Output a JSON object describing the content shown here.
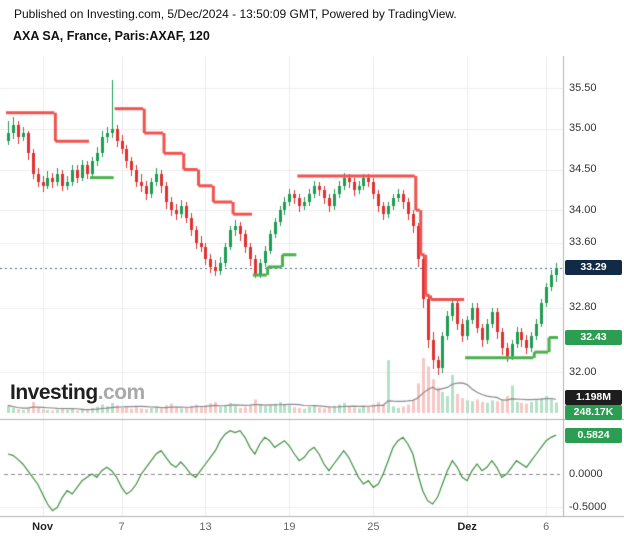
{
  "header": {
    "published_line": "Published on Investing.com, 5/Dec/2024 - 13:50:09 GMT, Powered by TradingView."
  },
  "title": "AXA SA, France, Paris:AXAF, 120",
  "logo": {
    "main": "Investing",
    "suffix": ".com"
  },
  "colors": {
    "candle_up": "#1e9c51",
    "candle_down": "#e03131",
    "trail_up": "#4caf50",
    "trail_down": "#ef5350",
    "vol_up": "#b5e0c9",
    "vol_down": "#f6c7c5",
    "vol_ma": "#8a8a8a",
    "osc_line": "#3f9142",
    "grid": "#ececec",
    "separator": "#b0b0b0",
    "last_line": "#4a6a92",
    "axis_text": "#333333",
    "time_text": "#666666"
  },
  "badges": {
    "last_price": {
      "text": "33.29",
      "bg": "#112b47"
    },
    "stop": {
      "text": "32.43",
      "bg": "#2b9e53"
    },
    "volume_a": {
      "text": "1.198M",
      "bg": "#1d1d1d"
    },
    "volume_b": {
      "text": "248.17K",
      "bg": "#2b9e53"
    },
    "oscillator": {
      "text": "0.5824",
      "bg": "#2b9e53"
    }
  },
  "chart_data": {
    "type": "candlestick",
    "title": "AXA SA, France, Paris:AXAF, 120",
    "symbol": "Paris:AXAF",
    "interval_minutes": 120,
    "last_price": 33.29,
    "stop_value": 32.43,
    "price_axis": {
      "labels": [
        35.5,
        35.0,
        34.5,
        34.0,
        33.6,
        32.8,
        32.0
      ],
      "ylim": [
        31.5,
        35.85
      ]
    },
    "time_axis": [
      {
        "text": "Nov",
        "index": 7,
        "emphasis": true
      },
      {
        "text": "7",
        "index": 23
      },
      {
        "text": "13",
        "index": 40
      },
      {
        "text": "19",
        "index": 57
      },
      {
        "text": "25",
        "index": 74
      },
      {
        "text": "Dez",
        "index": 93,
        "emphasis": true
      },
      {
        "text": "6",
        "index": 109
      }
    ],
    "oscillator": {
      "last": 0.5824,
      "axis_labels": [
        "0.0000",
        "-0.5000"
      ],
      "range": [
        -0.6,
        0.75
      ]
    },
    "volume_unit": "K",
    "volume_scale_k": 1300,
    "volume_labels": {
      "black": "1.198M",
      "green": "248.17K"
    },
    "candles": [
      [
        34.85,
        35.1,
        34.8,
        34.95
      ],
      [
        34.95,
        35.15,
        34.88,
        35.05
      ],
      [
        35.05,
        35.1,
        34.82,
        34.9
      ],
      [
        34.9,
        35.02,
        34.85,
        34.95
      ],
      [
        34.95,
        34.98,
        34.62,
        34.7
      ],
      [
        34.7,
        34.75,
        34.38,
        34.45
      ],
      [
        34.45,
        34.52,
        34.28,
        34.35
      ],
      [
        34.35,
        34.42,
        34.22,
        34.3
      ],
      [
        34.3,
        34.48,
        34.26,
        34.4
      ],
      [
        34.4,
        34.46,
        34.28,
        34.35
      ],
      [
        34.35,
        34.52,
        34.3,
        34.45
      ],
      [
        34.45,
        34.5,
        34.24,
        34.3
      ],
      [
        34.3,
        34.42,
        34.25,
        34.35
      ],
      [
        34.35,
        34.56,
        34.3,
        34.5
      ],
      [
        34.5,
        34.55,
        34.33,
        34.4
      ],
      [
        34.4,
        34.62,
        34.36,
        34.55
      ],
      [
        34.55,
        34.6,
        34.38,
        34.45
      ],
      [
        34.45,
        34.66,
        34.4,
        34.6
      ],
      [
        34.6,
        34.78,
        34.55,
        34.7
      ],
      [
        34.7,
        34.97,
        34.65,
        34.9
      ],
      [
        34.9,
        35.02,
        34.82,
        34.95
      ],
      [
        34.95,
        35.6,
        34.88,
        35.0
      ],
      [
        35.0,
        35.05,
        34.78,
        34.85
      ],
      [
        34.85,
        34.92,
        34.68,
        34.75
      ],
      [
        34.75,
        34.8,
        34.52,
        34.6
      ],
      [
        34.6,
        34.65,
        34.42,
        34.5
      ],
      [
        34.5,
        34.55,
        34.28,
        34.35
      ],
      [
        34.35,
        34.44,
        34.22,
        34.3
      ],
      [
        34.3,
        34.36,
        34.12,
        34.2
      ],
      [
        34.2,
        34.4,
        34.15,
        34.35
      ],
      [
        34.35,
        34.52,
        34.3,
        34.45
      ],
      [
        34.45,
        34.5,
        34.22,
        34.3
      ],
      [
        34.3,
        34.35,
        34.02,
        34.1
      ],
      [
        34.1,
        34.16,
        33.92,
        34.0
      ],
      [
        34.0,
        34.08,
        33.88,
        33.95
      ],
      [
        33.95,
        34.12,
        33.9,
        34.05
      ],
      [
        34.05,
        34.1,
        33.84,
        33.9
      ],
      [
        33.9,
        33.96,
        33.68,
        33.75
      ],
      [
        33.75,
        33.8,
        33.52,
        33.6
      ],
      [
        33.6,
        33.68,
        33.48,
        33.55
      ],
      [
        33.55,
        33.6,
        33.33,
        33.4
      ],
      [
        33.4,
        33.46,
        33.22,
        33.3
      ],
      [
        33.3,
        33.38,
        33.18,
        33.25
      ],
      [
        33.25,
        33.42,
        33.2,
        33.35
      ],
      [
        33.35,
        33.6,
        33.3,
        33.55
      ],
      [
        33.55,
        33.8,
        33.5,
        33.75
      ],
      [
        33.75,
        33.88,
        33.68,
        33.8
      ],
      [
        33.8,
        33.85,
        33.62,
        33.7
      ],
      [
        33.7,
        33.76,
        33.48,
        33.55
      ],
      [
        33.55,
        33.6,
        33.32,
        33.4
      ],
      [
        33.4,
        33.45,
        33.17,
        33.2
      ],
      [
        33.2,
        33.4,
        33.17,
        33.35
      ],
      [
        33.35,
        33.56,
        33.3,
        33.5
      ],
      [
        33.5,
        33.75,
        33.45,
        33.7
      ],
      [
        33.7,
        33.9,
        33.65,
        33.85
      ],
      [
        33.85,
        34.05,
        33.8,
        34.0
      ],
      [
        34.0,
        34.16,
        33.94,
        34.1
      ],
      [
        34.1,
        34.26,
        34.05,
        34.2
      ],
      [
        34.2,
        34.25,
        34.08,
        34.15
      ],
      [
        34.15,
        34.2,
        33.98,
        34.05
      ],
      [
        34.05,
        34.16,
        34.0,
        34.1
      ],
      [
        34.1,
        34.26,
        34.05,
        34.2
      ],
      [
        34.2,
        34.36,
        34.15,
        34.3
      ],
      [
        34.3,
        34.35,
        34.18,
        34.25
      ],
      [
        34.25,
        34.3,
        34.08,
        34.15
      ],
      [
        34.15,
        34.2,
        33.98,
        34.05
      ],
      [
        34.05,
        34.26,
        34.0,
        34.2
      ],
      [
        34.2,
        34.36,
        34.15,
        34.3
      ],
      [
        34.3,
        34.46,
        34.25,
        34.4
      ],
      [
        34.4,
        34.45,
        34.28,
        34.35
      ],
      [
        34.35,
        34.4,
        34.18,
        34.25
      ],
      [
        34.25,
        34.36,
        34.2,
        34.3
      ],
      [
        34.3,
        34.45,
        34.25,
        34.4
      ],
      [
        34.4,
        34.44,
        34.28,
        34.35
      ],
      [
        34.35,
        34.4,
        34.14,
        34.2
      ],
      [
        34.2,
        34.25,
        33.98,
        34.05
      ],
      [
        34.05,
        34.1,
        33.88,
        33.95
      ],
      [
        33.95,
        34.1,
        33.9,
        34.05
      ],
      [
        34.05,
        34.2,
        34.0,
        34.15
      ],
      [
        34.15,
        34.26,
        34.1,
        34.2
      ],
      [
        34.2,
        34.25,
        34.02,
        34.1
      ],
      [
        34.1,
        34.15,
        33.88,
        33.95
      ],
      [
        33.95,
        34.0,
        33.72,
        33.8
      ],
      [
        33.8,
        33.84,
        33.3,
        33.4
      ],
      [
        33.4,
        33.45,
        32.8,
        32.9
      ],
      [
        32.9,
        32.95,
        32.3,
        32.4
      ],
      [
        32.4,
        32.5,
        32.05,
        32.15
      ],
      [
        32.15,
        32.2,
        31.97,
        32.05
      ],
      [
        32.05,
        32.5,
        32.0,
        32.45
      ],
      [
        32.45,
        32.76,
        32.4,
        32.7
      ],
      [
        32.7,
        32.92,
        32.64,
        32.85
      ],
      [
        32.85,
        32.9,
        32.52,
        32.6
      ],
      [
        32.6,
        32.66,
        32.38,
        32.45
      ],
      [
        32.45,
        32.7,
        32.4,
        32.65
      ],
      [
        32.65,
        32.86,
        32.6,
        32.8
      ],
      [
        32.8,
        32.85,
        32.48,
        32.55
      ],
      [
        32.55,
        32.6,
        32.32,
        32.4
      ],
      [
        32.4,
        32.66,
        32.35,
        32.6
      ],
      [
        32.6,
        32.8,
        32.55,
        32.75
      ],
      [
        32.75,
        32.8,
        32.42,
        32.5
      ],
      [
        32.5,
        32.55,
        32.22,
        32.3
      ],
      [
        32.3,
        32.36,
        32.12,
        32.2
      ],
      [
        32.2,
        32.4,
        32.15,
        32.35
      ],
      [
        32.35,
        32.56,
        32.3,
        32.5
      ],
      [
        32.5,
        32.55,
        32.32,
        32.4
      ],
      [
        32.4,
        32.46,
        32.22,
        32.3
      ],
      [
        32.3,
        32.5,
        32.25,
        32.45
      ],
      [
        32.45,
        32.66,
        32.4,
        32.6
      ],
      [
        32.6,
        32.9,
        32.55,
        32.85
      ],
      [
        32.85,
        33.1,
        32.8,
        33.05
      ],
      [
        33.05,
        33.26,
        33.0,
        33.2
      ],
      [
        33.2,
        33.35,
        33.12,
        33.29
      ]
    ],
    "volumes_k": [
      180,
      120,
      90,
      70,
      110,
      260,
      130,
      90,
      70,
      60,
      80,
      100,
      70,
      90,
      60,
      110,
      80,
      120,
      150,
      200,
      160,
      240,
      180,
      120,
      140,
      100,
      160,
      110,
      90,
      120,
      150,
      100,
      180,
      220,
      150,
      110,
      130,
      160,
      200,
      140,
      180,
      230,
      260,
      150,
      190,
      240,
      160,
      120,
      140,
      180,
      320,
      200,
      160,
      190,
      220,
      260,
      200,
      180,
      140,
      120,
      100,
      140,
      180,
      130,
      110,
      150,
      170,
      200,
      240,
      160,
      130,
      110,
      180,
      140,
      200,
      260,
      200,
      1250,
      160,
      120,
      150,
      200,
      300,
      700,
      1300,
      1100,
      800,
      600,
      500,
      400,
      900,
      450,
      350,
      300,
      280,
      320,
      260,
      240,
      300,
      280,
      300,
      400,
      650,
      260,
      240,
      220,
      260,
      300,
      350,
      400,
      320,
      248
    ],
    "trail_segments": [
      [
        0,
        9,
        35.2,
        "down"
      ],
      [
        10,
        16,
        34.85,
        "down"
      ],
      [
        17,
        21,
        34.4,
        "up"
      ],
      [
        22,
        27,
        35.25,
        "down"
      ],
      [
        28,
        31,
        34.95,
        "down"
      ],
      [
        32,
        35,
        34.7,
        "down"
      ],
      [
        36,
        38,
        34.5,
        "down"
      ],
      [
        39,
        41,
        34.3,
        "down"
      ],
      [
        42,
        45,
        34.1,
        "down"
      ],
      [
        46,
        49,
        33.95,
        "down"
      ],
      [
        50,
        52,
        33.2,
        "up"
      ],
      [
        53,
        55,
        33.3,
        "up"
      ],
      [
        56,
        58,
        33.45,
        "up"
      ],
      [
        59,
        82,
        34.42,
        "down"
      ],
      [
        83,
        83,
        34.0,
        "down"
      ],
      [
        84,
        84,
        33.45,
        "down"
      ],
      [
        85,
        85,
        32.95,
        "down"
      ],
      [
        86,
        92,
        32.9,
        "down"
      ],
      [
        93,
        106,
        32.18,
        "up"
      ],
      [
        107,
        109,
        32.25,
        "up"
      ],
      [
        110,
        111,
        32.43,
        "up"
      ]
    ],
    "osc_values": [
      0.3,
      0.28,
      0.22,
      0.15,
      0.05,
      -0.05,
      -0.15,
      -0.3,
      -0.45,
      -0.55,
      -0.5,
      -0.35,
      -0.25,
      -0.3,
      -0.2,
      -0.1,
      -0.05,
      0.0,
      -0.05,
      0.05,
      0.1,
      0.05,
      -0.05,
      -0.2,
      -0.3,
      -0.25,
      -0.15,
      0.0,
      0.1,
      0.2,
      0.3,
      0.35,
      0.25,
      0.15,
      0.1,
      0.18,
      0.1,
      0.0,
      -0.05,
      0.05,
      0.15,
      0.25,
      0.35,
      0.5,
      0.6,
      0.65,
      0.62,
      0.65,
      0.55,
      0.4,
      0.3,
      0.45,
      0.55,
      0.5,
      0.4,
      0.45,
      0.5,
      0.42,
      0.3,
      0.2,
      0.25,
      0.35,
      0.4,
      0.3,
      0.15,
      0.05,
      0.15,
      0.25,
      0.35,
      0.25,
      0.1,
      -0.05,
      -0.15,
      -0.1,
      -0.2,
      -0.15,
      0.0,
      0.2,
      0.4,
      0.5,
      0.55,
      0.45,
      0.3,
      0.0,
      -0.25,
      -0.4,
      -0.45,
      -0.35,
      -0.15,
      0.05,
      0.2,
      0.1,
      -0.05,
      -0.1,
      0.05,
      0.15,
      0.05,
      0.1,
      0.2,
      0.1,
      -0.05,
      0.0,
      0.1,
      0.2,
      0.15,
      0.1,
      0.2,
      0.3,
      0.4,
      0.5,
      0.55,
      0.5824
    ]
  }
}
